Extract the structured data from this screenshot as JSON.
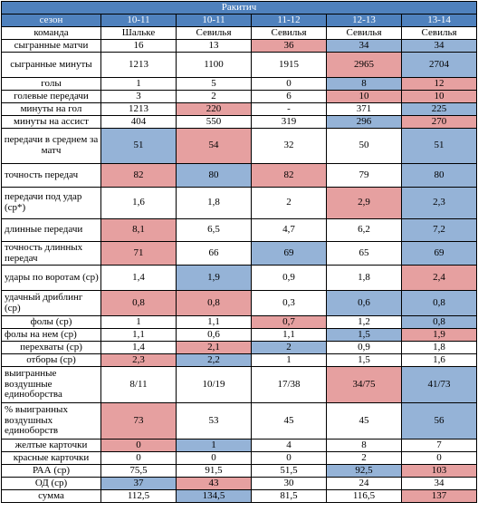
{
  "title": "Ракитич",
  "header": {
    "label": "сезон",
    "seasons": [
      "10-11",
      "10-11",
      "11-12",
      "12-13",
      "13-14"
    ]
  },
  "team_row": {
    "label": "команда",
    "teams": [
      "Шальке",
      "Севилья",
      "Севилья",
      "Севилья",
      "Севилья"
    ]
  },
  "colors": {
    "header": "#4f81bd",
    "red": "#e6a0a0",
    "blue": "#95b3d7"
  },
  "rows": [
    {
      "label": "сыгранные  матчи",
      "align": "center",
      "values": [
        "16",
        "13",
        "36",
        "34",
        "34"
      ],
      "hl": [
        "",
        "",
        "r",
        "b",
        "b"
      ]
    },
    {
      "label": "сыгранные минуты",
      "align": "center",
      "values": [
        "1213",
        "1100",
        "1915",
        "2965",
        "2704"
      ],
      "hl": [
        "",
        "",
        "",
        "r",
        "b"
      ]
    },
    {
      "label": "голы",
      "align": "center",
      "values": [
        "1",
        "5",
        "0",
        "8",
        "12"
      ],
      "hl": [
        "",
        "",
        "",
        "b",
        "r"
      ]
    },
    {
      "label": "голевые передачи",
      "align": "center",
      "values": [
        "3",
        "2",
        "6",
        "10",
        "10"
      ],
      "hl": [
        "",
        "",
        "",
        "r",
        "r"
      ]
    },
    {
      "label": "минуты на гол",
      "align": "center",
      "values": [
        "1213",
        "220",
        "-",
        "371",
        "225"
      ],
      "hl": [
        "",
        "r",
        "",
        "",
        "b"
      ]
    },
    {
      "label": "минуты на ассист",
      "align": "center",
      "values": [
        "404",
        "550",
        "319",
        "296",
        "270"
      ],
      "hl": [
        "",
        "",
        "",
        "b",
        "r"
      ]
    },
    {
      "label": "передачи в среднем  за матч",
      "align": "center",
      "values": [
        "51",
        "54",
        "32",
        "50",
        "51"
      ],
      "hl": [
        "b",
        "r",
        "",
        "",
        "b"
      ]
    },
    {
      "label": "точность передач",
      "align": "left",
      "values": [
        "82",
        "80",
        "82",
        "79",
        "80"
      ],
      "hl": [
        "r",
        "b",
        "r",
        "",
        "b"
      ]
    },
    {
      "label": "передачи  под удар (ср*)",
      "align": "left",
      "values": [
        "1,6",
        "1,8",
        "2",
        "2,9",
        "2,3"
      ],
      "hl": [
        "",
        "",
        "",
        "r",
        "b"
      ]
    },
    {
      "label": "длинные передачи",
      "align": "left",
      "values": [
        "8,1",
        "6,5",
        "4,7",
        "6,2",
        "7,2"
      ],
      "hl": [
        "r",
        "",
        "",
        "",
        "b"
      ]
    },
    {
      "label": "точность длинных передач",
      "align": "left",
      "values": [
        "71",
        "66",
        "69",
        "65",
        "69"
      ],
      "hl": [
        "r",
        "",
        "b",
        "",
        "b"
      ]
    },
    {
      "label": "удары по воротам (ср)",
      "align": "left",
      "values": [
        "1,4",
        "1,9",
        "0,9",
        "1,8",
        "2,4"
      ],
      "hl": [
        "",
        "b",
        "",
        "",
        "r"
      ]
    },
    {
      "label": "удачный дриблинг  (ср)",
      "align": "left",
      "values": [
        "0,8",
        "0,8",
        "0,3",
        "0,6",
        "0,8"
      ],
      "hl": [
        "r",
        "r",
        "",
        "b",
        "b"
      ]
    },
    {
      "label": "фолы (ср)",
      "align": "center",
      "values": [
        "1",
        "1,1",
        "0,7",
        "1,2",
        "0,8"
      ],
      "hl": [
        "",
        "",
        "r",
        "",
        "b"
      ]
    },
    {
      "label": "фолы на нем  (ср)",
      "align": "left",
      "values": [
        "1,1",
        "0,6",
        "1,1",
        "1,5",
        "1,9"
      ],
      "hl": [
        "",
        "",
        "",
        "b",
        "r"
      ]
    },
    {
      "label": "перехваты  (ср)",
      "align": "center",
      "values": [
        "1,4",
        "2,1",
        "2",
        "0,9",
        "1,8"
      ],
      "hl": [
        "",
        "r",
        "b",
        "",
        ""
      ]
    },
    {
      "label": "отборы  (ср)",
      "align": "center",
      "values": [
        "2,3",
        "2,2",
        "1",
        "1,5",
        "1,6"
      ],
      "hl": [
        "r",
        "b",
        "",
        "",
        ""
      ]
    },
    {
      "label": "выигранные воздушные единоборства",
      "align": "left",
      "values": [
        "8/11",
        "10/19",
        "17/38",
        "34/75",
        "41/73"
      ],
      "hl": [
        "",
        "",
        "",
        "r",
        "b"
      ]
    },
    {
      "label": "% выигранных воздушных единоборств",
      "align": "left",
      "values": [
        "73",
        "53",
        "45",
        "45",
        "56"
      ],
      "hl": [
        "r",
        "",
        "",
        "",
        "b"
      ]
    },
    {
      "label": "желтые карточки",
      "align": "center",
      "values": [
        "0",
        "1",
        "4",
        "8",
        "7"
      ],
      "hl": [
        "r",
        "b",
        "",
        "",
        ""
      ]
    },
    {
      "label": "красные  карточки",
      "align": "center",
      "values": [
        "0",
        "0",
        "0",
        "2",
        "0"
      ],
      "hl": [
        "",
        "",
        "",
        "",
        ""
      ]
    },
    {
      "label": "РАА (ср)",
      "align": "center",
      "values": [
        "75,5",
        "91,5",
        "51,5",
        "92,5",
        "103"
      ],
      "hl": [
        "",
        "",
        "",
        "b",
        "r"
      ]
    },
    {
      "label": "ОД (ср)",
      "align": "center",
      "values": [
        "37",
        "43",
        "30",
        "24",
        "34"
      ],
      "hl": [
        "b",
        "r",
        "",
        "",
        ""
      ]
    },
    {
      "label": "сумма",
      "align": "center",
      "values": [
        "112,5",
        "134,5",
        "81,5",
        "116,5",
        "137"
      ],
      "hl": [
        "",
        "b",
        "",
        "",
        "r"
      ]
    }
  ]
}
